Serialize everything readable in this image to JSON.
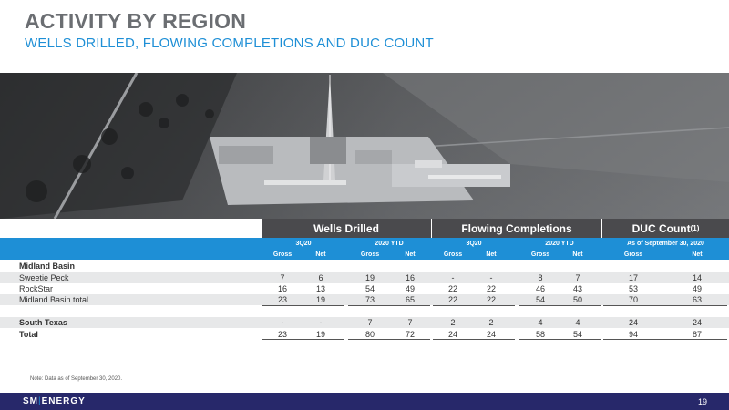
{
  "header": {
    "title": "ACTIVITY BY REGION",
    "subtitle": "WELLS DRILLED, FLOWING COMPLETIONS AND DUC COUNT"
  },
  "table": {
    "groups": {
      "wells": "Wells Drilled",
      "flowing": "Flowing Completions",
      "duc": "DUC Count",
      "duc_sup": "(1)"
    },
    "periods": {
      "wells_q": "3Q20",
      "wells_ytd": "2020 YTD",
      "flow_q": "3Q20",
      "flow_ytd": "2020 YTD",
      "duc_asof": "As of September 30, 2020"
    },
    "gross": "Gross",
    "net": "Net",
    "rows": [
      {
        "label": "Midland Basin",
        "values": [
          "",
          "",
          "",
          "",
          "",
          "",
          "",
          "",
          "",
          ""
        ]
      },
      {
        "label": "Sweetie Peck",
        "values": [
          "7",
          "6",
          "19",
          "16",
          "-",
          "-",
          "8",
          "7",
          "17",
          "14"
        ]
      },
      {
        "label": "RockStar",
        "values": [
          "16",
          "13",
          "54",
          "49",
          "22",
          "22",
          "46",
          "43",
          "53",
          "49"
        ]
      },
      {
        "label": "Midland Basin total",
        "values": [
          "23",
          "19",
          "73",
          "65",
          "22",
          "22",
          "54",
          "50",
          "70",
          "63"
        ]
      },
      {
        "label": "South Texas",
        "values": [
          "-",
          "-",
          "7",
          "7",
          "2",
          "2",
          "4",
          "4",
          "24",
          "24"
        ]
      },
      {
        "label": "Total",
        "values": [
          "23",
          "19",
          "80",
          "72",
          "24",
          "24",
          "58",
          "54",
          "94",
          "87"
        ]
      }
    ]
  },
  "note": "Note: Data as of September 30, 2020.",
  "footer": {
    "logo_left": "SM",
    "logo_sep": "|",
    "logo_right": "ENERGY",
    "page": "19"
  }
}
